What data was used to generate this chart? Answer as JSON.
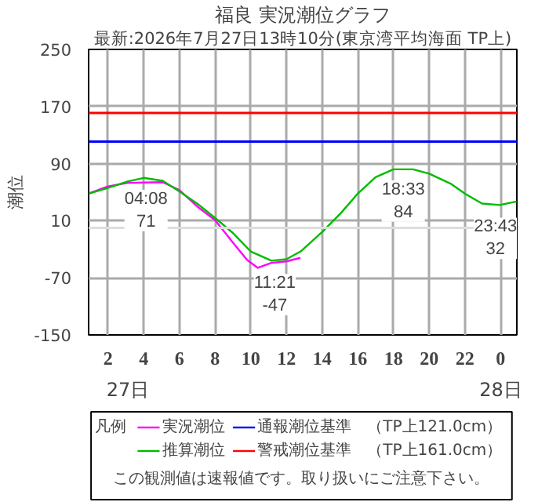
{
  "chart_data": {
    "type": "line",
    "title": "福良 実況潮位グラフ",
    "subtitle": "最新:2026年7月27日13時10分(東京湾平均海面 TP上)",
    "ylabel": "潮位",
    "legend_title": "凡例",
    "series": [
      {
        "name": "実況潮位",
        "color": "#ff00ff",
        "x": [
          "2026-07-27T00:55",
          "2026-07-27T02:00",
          "2026-07-27T03:06",
          "2026-07-27T05:04",
          "2026-07-27T06:00",
          "2026-07-27T07:06",
          "2026-07-27T08:00",
          "2026-07-27T08:57",
          "2026-07-27T09:48",
          "2026-07-27T10:24",
          "2026-07-27T11:10",
          "2026-07-27T12:00",
          "2026-07-27T12:47"
        ],
        "values": [
          48,
          58,
          63,
          64,
          53,
          28,
          11,
          -19,
          -45,
          -56,
          -49,
          -47,
          -42
        ]
      },
      {
        "name": "推算潮位",
        "color": "#00bb00",
        "x": [
          "2026-07-27T00:55",
          "2026-07-27T02:00",
          "2026-07-27T03:06",
          "2026-07-27T04:00",
          "2026-07-27T05:04",
          "2026-07-27T06:00",
          "2026-07-27T07:00",
          "2026-07-27T08:00",
          "2026-07-27T08:57",
          "2026-07-27T10:00",
          "2026-07-27T11:10",
          "2026-07-27T12:00",
          "2026-07-27T12:48",
          "2026-07-27T14:00",
          "2026-07-27T15:04",
          "2026-07-27T16:00",
          "2026-07-27T17:00",
          "2026-07-27T18:00",
          "2026-07-27T19:06",
          "2026-07-27T20:00",
          "2026-07-27T21:12",
          "2026-07-27T22:00",
          "2026-07-27T22:58",
          "2026-07-27T23:57",
          "2026-07-28T00:54"
        ],
        "values": [
          48,
          56,
          65,
          70,
          66,
          51,
          34,
          14,
          -6,
          -33,
          -46,
          -44,
          -33,
          -6,
          21,
          48,
          71,
          82,
          82,
          76,
          62,
          48,
          34,
          32,
          37
        ]
      }
    ],
    "xlim": [
      "2026-07-27T00:55",
      "2026-07-28T00:55"
    ],
    "xticks": [
      {
        "value": "2026-07-27T02:00",
        "label": "2"
      },
      {
        "value": "2026-07-27T04:00",
        "label": "4"
      },
      {
        "value": "2026-07-27T06:00",
        "label": "6"
      },
      {
        "value": "2026-07-27T08:00",
        "label": "8"
      },
      {
        "value": "2026-07-27T10:00",
        "label": "10"
      },
      {
        "value": "2026-07-27T12:00",
        "label": "12"
      },
      {
        "value": "2026-07-27T14:00",
        "label": "14"
      },
      {
        "value": "2026-07-27T16:00",
        "label": "16"
      },
      {
        "value": "2026-07-27T18:00",
        "label": "18"
      },
      {
        "value": "2026-07-27T20:00",
        "label": "20"
      },
      {
        "value": "2026-07-27T22:00",
        "label": "22"
      },
      {
        "value": "2026-07-28T00:00",
        "label": "0"
      }
    ],
    "ylim": [
      -150,
      250
    ],
    "yticks": [
      -150,
      -70,
      10,
      90,
      170,
      250
    ],
    "grid": true,
    "legend": "bottom",
    "ref_lines": [
      {
        "axis": "y",
        "value": 121,
        "label": "通報潮位基準　（TP上121.0cm）",
        "color": "#0000ff"
      },
      {
        "axis": "y",
        "value": 161,
        "label": "警戒潮位基準　（TP上161.0cm）",
        "color": "#ff0000"
      },
      {
        "axis": "y",
        "value": 0,
        "label": null,
        "color": "#dddddd"
      }
    ],
    "annotations": [
      {
        "text": "04:08\n71",
        "x": "2026-07-27T04:08",
        "y": 71
      },
      {
        "text": "11:21\n-47",
        "x": "2026-07-27T11:21",
        "y": -47
      },
      {
        "text": "18:33\n84",
        "x": "2026-07-27T18:33",
        "y": 84
      },
      {
        "text": "23:43\n32",
        "x": "2026-07-27T23:43",
        "y": 32
      },
      "27日",
      "28日",
      "この観測値は速報値です。取り扱いにご注意下さい。"
    ]
  }
}
